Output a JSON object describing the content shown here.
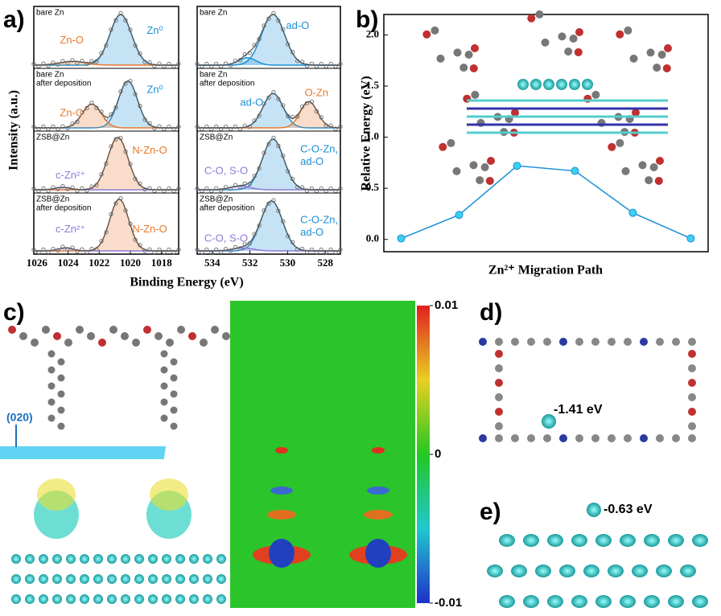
{
  "panels": {
    "a": {
      "label": "a)",
      "ylabel": "Intensity (a.u.)",
      "xlabel": "Binding Energy (eV)",
      "left": {
        "xlim": [
          1026.2,
          1016.9
        ],
        "xticks": [
          1026,
          1024,
          1022,
          1020,
          1018
        ],
        "cells": [
          {
            "sample": [
              "bare Zn"
            ],
            "labels": [
              "Zn⁰",
              "Zn-O"
            ]
          },
          {
            "sample": [
              "bare Zn",
              "after deposition"
            ],
            "labels": [
              "Zn⁰",
              "Zn-O"
            ]
          },
          {
            "sample": [
              "ZSB@Zn"
            ],
            "labels": [
              "N-Zn-O",
              "c-Zn²⁺"
            ]
          },
          {
            "sample": [
              "ZSB@Zn",
              "after deposition"
            ],
            "labels": [
              "N-Zn-O",
              "c-Zn²⁺"
            ]
          }
        ]
      },
      "right": {
        "xlim": [
          534.8,
          527.2
        ],
        "xticks": [
          534,
          532,
          530,
          528
        ],
        "cells": [
          {
            "sample": [
              "bare Zn"
            ],
            "labels": [
              "ad-O"
            ]
          },
          {
            "sample": [
              "bare Zn",
              "after deposition"
            ],
            "labels": [
              "ad-O",
              "O-Zn"
            ]
          },
          {
            "sample": [
              "ZSB@Zn"
            ],
            "labels": [
              "C-O, S-O",
              "C-O-Zn,",
              "ad-O"
            ]
          },
          {
            "sample": [
              "ZSB@Zn",
              "after deposition"
            ],
            "labels": [
              "C-O, S-O",
              "C-O-Zn,",
              "ad-O"
            ]
          }
        ]
      }
    },
    "b": {
      "label": "b)"
    },
    "c": {
      "label": "c)",
      "plane": "(020)",
      "colorbar": {
        "ticks": [
          {
            "value": 0.01,
            "label": "0.01"
          },
          0,
          {
            "value": -0.01,
            "label": "-0.01"
          }
        ],
        "lim": [
          -0.01,
          0.01
        ]
      }
    },
    "d": {
      "label": "d)",
      "energy": "-1.41 eV"
    },
    "e": {
      "label": "e)",
      "energy": "-0.63 eV"
    }
  },
  "chart_data": {
    "type": "line",
    "xlabel": "Zn²⁺ Migration Path",
    "ylabel": "Relative Energy (eV)",
    "x": [
      1,
      2,
      3,
      4,
      5,
      6
    ],
    "values": [
      0.01,
      0.24,
      0.72,
      0.67,
      0.26,
      0.01
    ],
    "color": "#1a8fd6",
    "xlim": [
      0.7,
      6.3
    ],
    "ylim": [
      -0.12,
      2.2
    ],
    "yticks": [
      {
        "value": 0,
        "label": "0.0"
      },
      {
        "value": 0.5,
        "label": "0.5"
      },
      {
        "value": 1,
        "label": "1.0"
      },
      {
        "value": 1.5,
        "label": "1.5"
      },
      {
        "value": 2,
        "label": "2.0"
      }
    ]
  }
}
